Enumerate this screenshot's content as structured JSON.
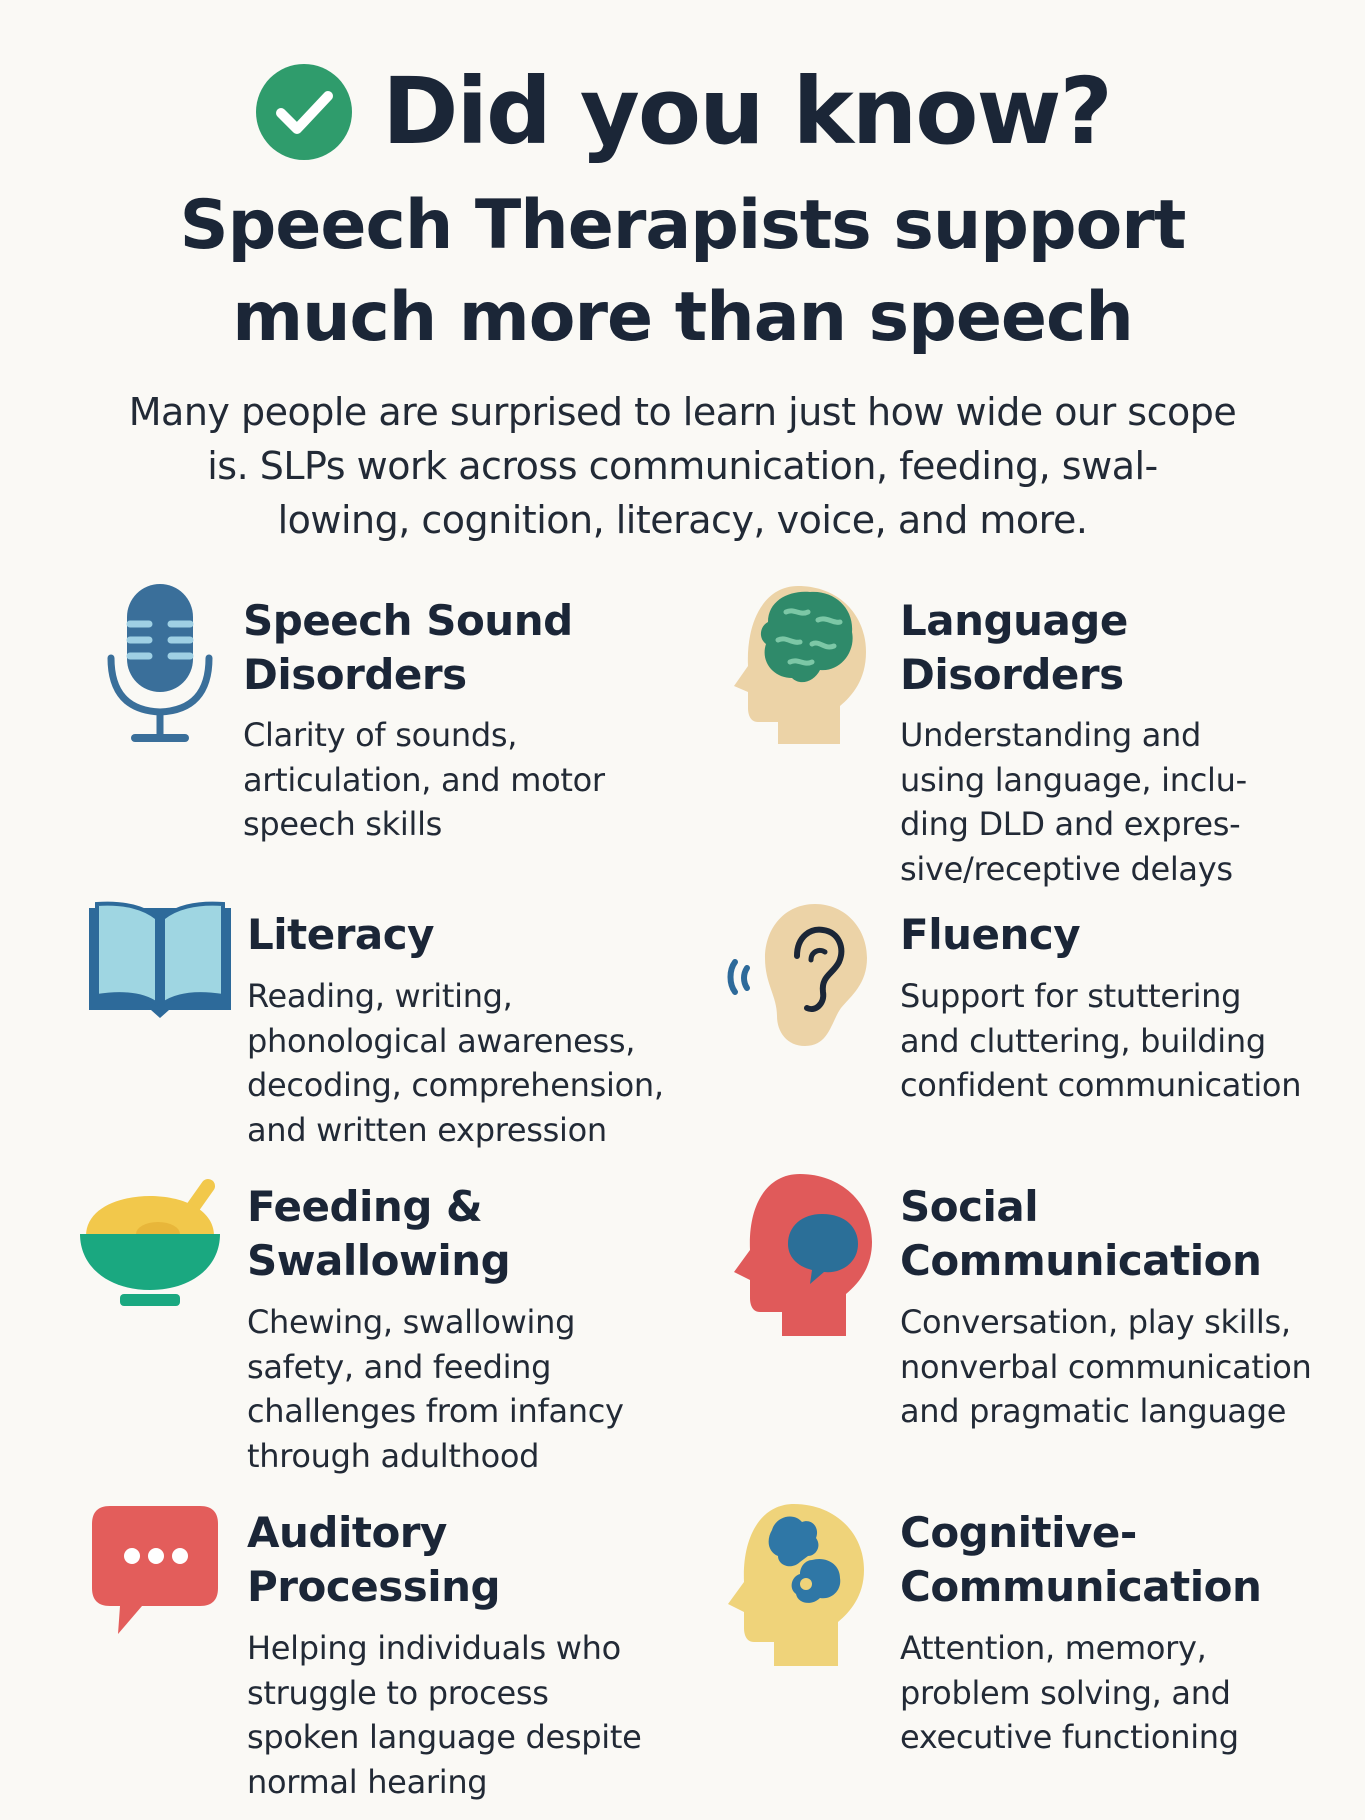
{
  "header": {
    "headline": "Did you know?",
    "subtitle_lines": [
      "Speech Therapists support",
      "much more than speech"
    ],
    "intro_lines": [
      "Many people are surprised to learn just how wide our scope",
      "is. SLPs work across communication, feeding, swal-",
      "lowing, cognition, literacy, voice, and more."
    ]
  },
  "colors": {
    "check_green": "#2f9c6c",
    "mic_blue": "#3a6f9a",
    "book_blue": "#2d6a9a",
    "book_pages": "#9fd6e2",
    "skin": "#ecd3a7",
    "brain_green": "#2f8a6a",
    "bowl_green": "#1aa880",
    "food_yellow": "#f2c84b",
    "social_red": "#e05a5a",
    "social_blue": "#2b6f98",
    "bubble_red": "#e35d5b",
    "cognitive_yellow": "#efd37a",
    "cognitive_blue": "#2f77a6"
  },
  "items": [
    {
      "icon": "microphone-icon",
      "title_lines": [
        "Speech Sound",
        "Disorders"
      ],
      "desc_lines": [
        "Clarity of sounds,",
        "articulation, and motor",
        "speech skills"
      ]
    },
    {
      "icon": "head-brain-icon",
      "title_lines": [
        "Language",
        "Disorders"
      ],
      "desc_lines": [
        "Understanding and",
        "using language, inclu-",
        "ding DLD and expres-",
        "sive/receptive delays"
      ]
    },
    {
      "icon": "open-book-icon",
      "title_lines": [
        "Literacy"
      ],
      "desc_lines": [
        "Reading, writing,",
        "phonological awareness,",
        "decoding, comprehension,",
        "and written expression"
      ]
    },
    {
      "icon": "ear-icon",
      "title_lines": [
        "Fluency"
      ],
      "desc_lines": [
        "Support for stuttering",
        "and cluttering, building",
        "confident communication"
      ]
    },
    {
      "icon": "bowl-spoon-icon",
      "title_lines": [
        "Feeding &",
        "Swallowing"
      ],
      "desc_lines": [
        "Chewing, swallowing",
        "safety, and feeding",
        "challenges from infancy",
        "through adulthood"
      ]
    },
    {
      "icon": "head-speech-bubble-icon",
      "title_lines": [
        "Social",
        "Communication"
      ],
      "desc_lines": [
        "Conversation, play skills,",
        "nonverbal communication",
        "and pragmatic language"
      ]
    },
    {
      "icon": "chat-bubble-icon",
      "title_lines": [
        "Auditory",
        "Processing"
      ],
      "desc_lines": [
        "Helping individuals who",
        "struggle to process",
        "spoken language despite",
        "normal hearing"
      ]
    },
    {
      "icon": "head-puzzle-icon",
      "title_lines": [
        "Cognitive-",
        "Communication"
      ],
      "desc_lines": [
        "Attention, memory,",
        "problem solving, and",
        "executive functioning"
      ]
    }
  ]
}
